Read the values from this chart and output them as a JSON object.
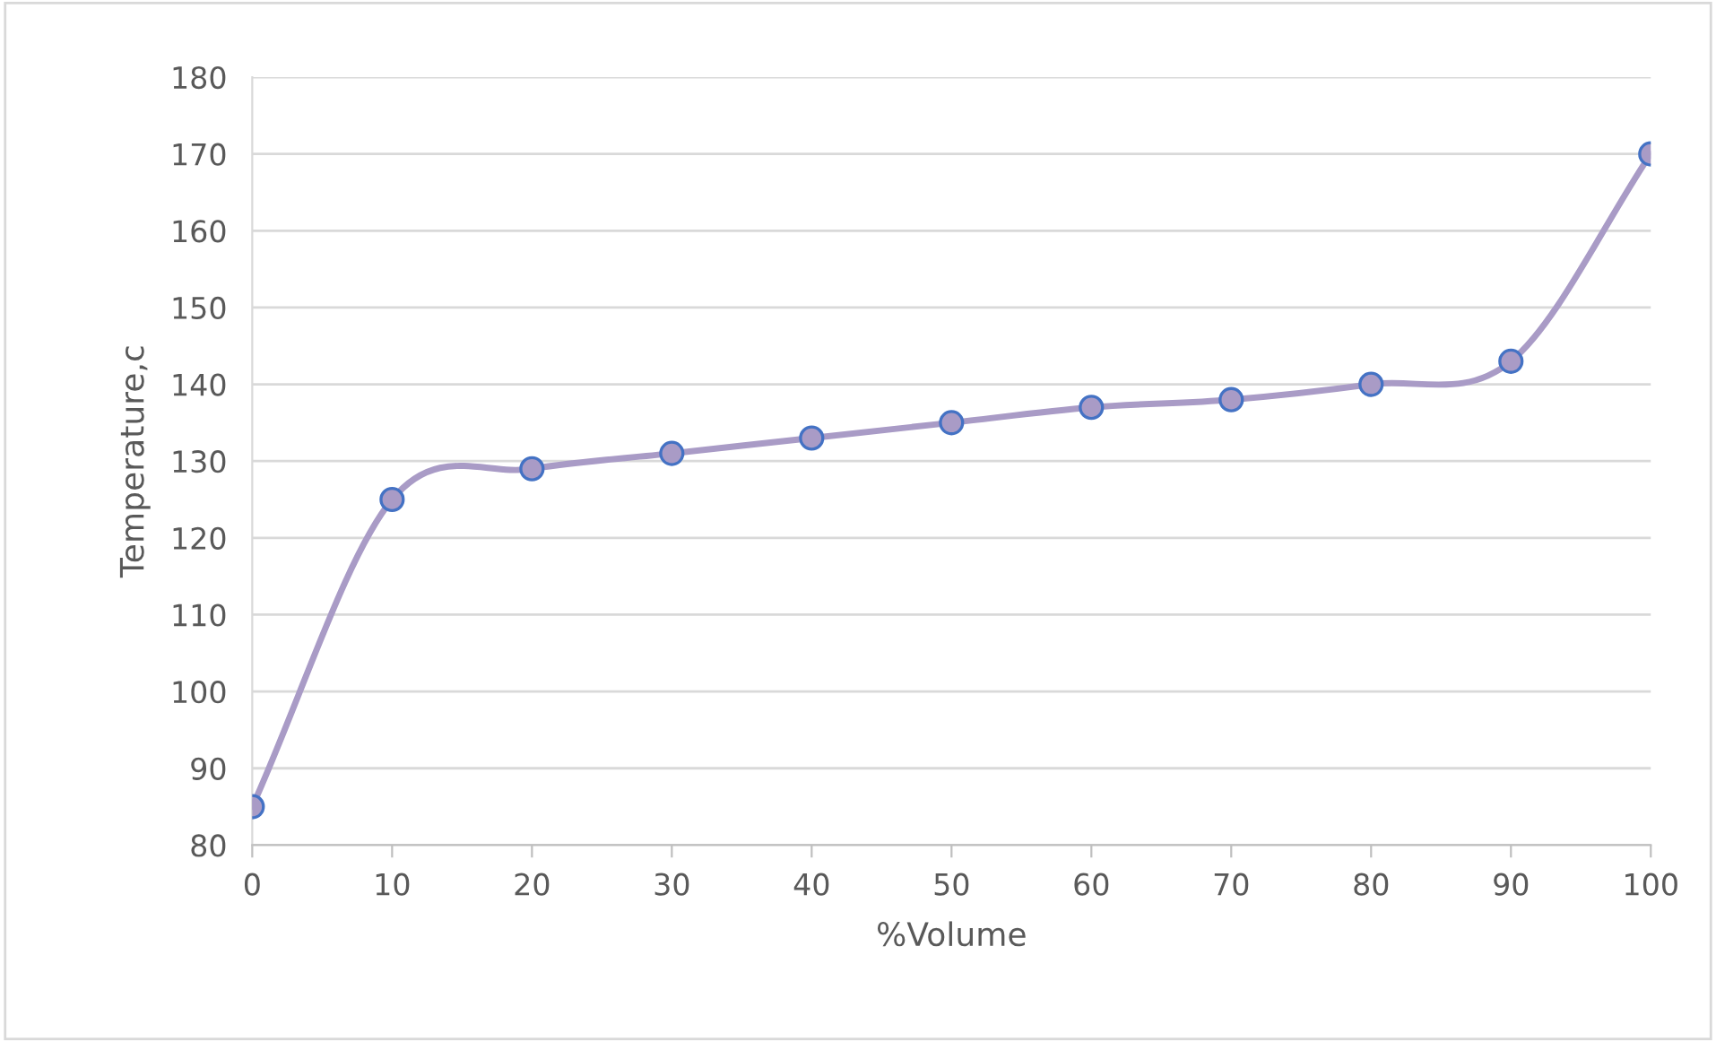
{
  "chart_data": {
    "type": "line",
    "xlabel": "%Volume",
    "ylabel": "Temperature,c",
    "x": [
      0,
      10,
      20,
      30,
      40,
      50,
      60,
      70,
      80,
      90,
      100
    ],
    "series": [
      {
        "color": "#a99bc6",
        "values": [
          85,
          125,
          129,
          131,
          133,
          135,
          137,
          138,
          140,
          143,
          170
        ]
      }
    ],
    "xlim": [
      0,
      100
    ],
    "xticks": [
      0,
      10,
      20,
      30,
      40,
      50,
      60,
      70,
      80,
      90,
      100
    ],
    "ylim": [
      80,
      180
    ],
    "yticks": [
      80,
      90,
      100,
      110,
      120,
      130,
      140,
      150,
      160,
      170,
      180
    ],
    "grid": "y",
    "marker": "circle",
    "line_style": "solid"
  }
}
